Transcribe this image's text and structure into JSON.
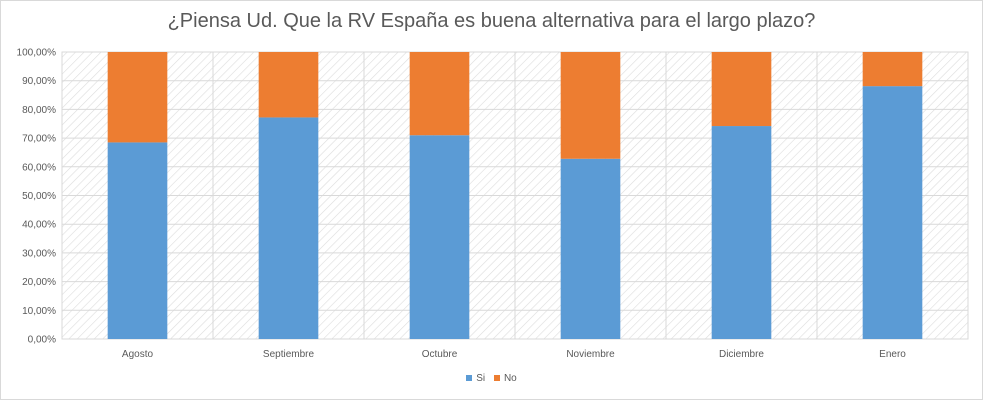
{
  "chart_data": {
    "type": "bar",
    "stacked": true,
    "title": "¿Piensa Ud. Que la RV España es buena alternativa para el largo plazo?",
    "categories": [
      "Agosto",
      "Septiembre",
      "Octubre",
      "Noviembre",
      "Diciembre",
      "Enero"
    ],
    "series": [
      {
        "name": "Si",
        "color": "#5b9bd5",
        "values": [
          0.685,
          0.772,
          0.71,
          0.628,
          0.742,
          0.881
        ]
      },
      {
        "name": "No",
        "color": "#ed7d31",
        "values": [
          0.315,
          0.228,
          0.29,
          0.372,
          0.258,
          0.119
        ]
      }
    ],
    "ylim": [
      0,
      1
    ],
    "yticks": [
      "0,00%",
      "10,00%",
      "20,00%",
      "30,00%",
      "40,00%",
      "50,00%",
      "60,00%",
      "70,00%",
      "80,00%",
      "90,00%",
      "100,00%"
    ],
    "xlabel": "",
    "ylabel": "",
    "legend_position": "bottom",
    "grid": true
  }
}
